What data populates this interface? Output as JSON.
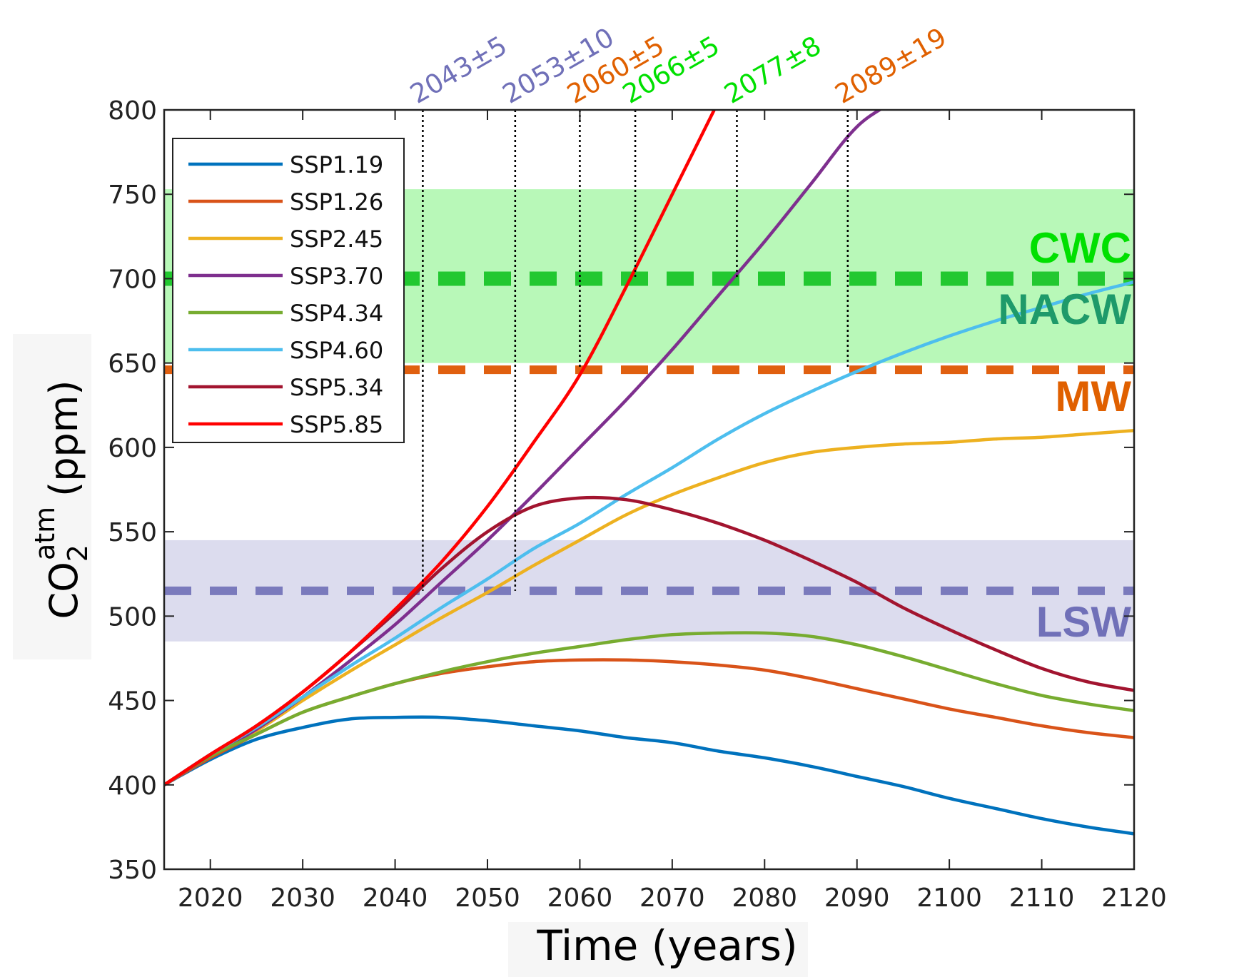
{
  "chart_data": {
    "type": "line",
    "xlabel": "Time (years)",
    "ylabel": {
      "main": "CO",
      "sub": "2",
      "sup": "atm",
      "unit": "(ppm)"
    },
    "xlim": [
      2015,
      2120
    ],
    "ylim": [
      350,
      800
    ],
    "xticks": [
      2020,
      2030,
      2040,
      2050,
      2060,
      2070,
      2080,
      2090,
      2100,
      2110,
      2120
    ],
    "yticks": [
      350,
      400,
      450,
      500,
      550,
      600,
      650,
      700,
      750,
      800
    ],
    "grid": false,
    "legend_position": "top-left",
    "series": [
      {
        "name": "SSP1.19",
        "color": "#0072BD",
        "x": [
          2015,
          2020,
          2025,
          2030,
          2035,
          2040,
          2045,
          2050,
          2055,
          2060,
          2065,
          2070,
          2075,
          2080,
          2085,
          2090,
          2095,
          2100,
          2105,
          2110,
          2115,
          2120
        ],
        "y": [
          400,
          415,
          427,
          434,
          439,
          440,
          440,
          438,
          435,
          432,
          428,
          425,
          420,
          416,
          411,
          405,
          399,
          392,
          386,
          380,
          375,
          371
        ]
      },
      {
        "name": "SSP1.26",
        "color": "#D95319",
        "x": [
          2015,
          2020,
          2025,
          2030,
          2035,
          2040,
          2045,
          2050,
          2055,
          2060,
          2065,
          2070,
          2075,
          2080,
          2085,
          2090,
          2095,
          2100,
          2105,
          2110,
          2115,
          2120
        ],
        "y": [
          400,
          416,
          430,
          443,
          452,
          460,
          466,
          470,
          473,
          474,
          474,
          473,
          471,
          468,
          463,
          457,
          451,
          445,
          440,
          435,
          431,
          428
        ]
      },
      {
        "name": "SSP2.45",
        "color": "#EDB120",
        "x": [
          2015,
          2020,
          2025,
          2030,
          2035,
          2040,
          2045,
          2050,
          2055,
          2060,
          2065,
          2070,
          2075,
          2080,
          2085,
          2090,
          2095,
          2100,
          2105,
          2110,
          2115,
          2120
        ],
        "y": [
          400,
          417,
          432,
          450,
          467,
          483,
          499,
          514,
          530,
          545,
          560,
          572,
          582,
          591,
          597,
          600,
          602,
          603,
          605,
          606,
          608,
          610
        ]
      },
      {
        "name": "SSP3.70",
        "color": "#7E2F8E",
        "x": [
          2015,
          2020,
          2025,
          2030,
          2035,
          2040,
          2045,
          2050,
          2055,
          2060,
          2065,
          2070,
          2075,
          2080,
          2085,
          2090,
          2095,
          2100
        ],
        "y": [
          400,
          417,
          433,
          452,
          473,
          495,
          520,
          545,
          572,
          600,
          628,
          658,
          690,
          722,
          756,
          790,
          810,
          840
        ]
      },
      {
        "name": "SSP4.34",
        "color": "#77AC30",
        "x": [
          2015,
          2020,
          2025,
          2030,
          2035,
          2040,
          2045,
          2050,
          2055,
          2060,
          2065,
          2070,
          2075,
          2080,
          2085,
          2090,
          2095,
          2100,
          2105,
          2110,
          2115,
          2120
        ],
        "y": [
          400,
          417,
          430,
          443,
          452,
          460,
          467,
          473,
          478,
          482,
          486,
          489,
          490,
          490,
          488,
          483,
          476,
          468,
          460,
          453,
          448,
          444
        ]
      },
      {
        "name": "SSP4.60",
        "color": "#4DBEEE",
        "x": [
          2015,
          2020,
          2025,
          2030,
          2035,
          2040,
          2045,
          2050,
          2055,
          2060,
          2065,
          2070,
          2075,
          2080,
          2085,
          2090,
          2095,
          2100,
          2105,
          2110,
          2115,
          2120
        ],
        "y": [
          400,
          418,
          434,
          452,
          470,
          487,
          505,
          522,
          540,
          555,
          572,
          588,
          605,
          620,
          633,
          645,
          656,
          666,
          675,
          683,
          691,
          698
        ]
      },
      {
        "name": "SSP5.34",
        "color": "#A2142F",
        "x": [
          2015,
          2020,
          2025,
          2030,
          2035,
          2040,
          2045,
          2050,
          2055,
          2060,
          2065,
          2070,
          2075,
          2080,
          2085,
          2090,
          2095,
          2100,
          2105,
          2110,
          2115,
          2120
        ],
        "y": [
          400,
          418,
          435,
          455,
          478,
          502,
          528,
          550,
          565,
          570,
          569,
          563,
          555,
          545,
          533,
          520,
          505,
          492,
          480,
          469,
          461,
          456
        ]
      },
      {
        "name": "SSP5.85",
        "color": "#FF0000",
        "x": [
          2015,
          2020,
          2025,
          2030,
          2035,
          2040,
          2045,
          2050,
          2055,
          2060,
          2065,
          2070,
          2075
        ],
        "y": [
          400,
          418,
          435,
          455,
          478,
          504,
          532,
          565,
          603,
          643,
          695,
          750,
          805
        ]
      }
    ],
    "thresholds": [
      {
        "name": "CWC",
        "value": 700,
        "color": "#00E000",
        "line_color": "#22C830"
      },
      {
        "name": "NACW",
        "value": 697,
        "color": "#1E9A6A"
      },
      {
        "name": "MW",
        "value": 646,
        "color": "#E06000",
        "line_color": "#E06010"
      },
      {
        "name": "LSW",
        "value": 515,
        "color": "#7070B8",
        "line_color": "#7A7ABC"
      }
    ],
    "bands": [
      {
        "ymin": 650,
        "ymax": 753,
        "color": "#B8F8B8"
      },
      {
        "ymin": 485,
        "ymax": 545,
        "color": "#DCDCEE"
      }
    ],
    "crossings": [
      {
        "year": 2043,
        "label": "2043±5",
        "color": "#7070B8",
        "ymin": 515
      },
      {
        "year": 2053,
        "label": "2053±10",
        "color": "#7070B8",
        "ymin": 515
      },
      {
        "year": 2060,
        "label": "2060±5",
        "color": "#E06000",
        "ymin": 646
      },
      {
        "year": 2066,
        "label": "2066±5",
        "color": "#00E000",
        "ymin": 700
      },
      {
        "year": 2077,
        "label": "2077±8",
        "color": "#00E000",
        "ymin": 700
      },
      {
        "year": 2089,
        "label": "2089±19",
        "color": "#E06000",
        "ymin": 646
      }
    ]
  }
}
